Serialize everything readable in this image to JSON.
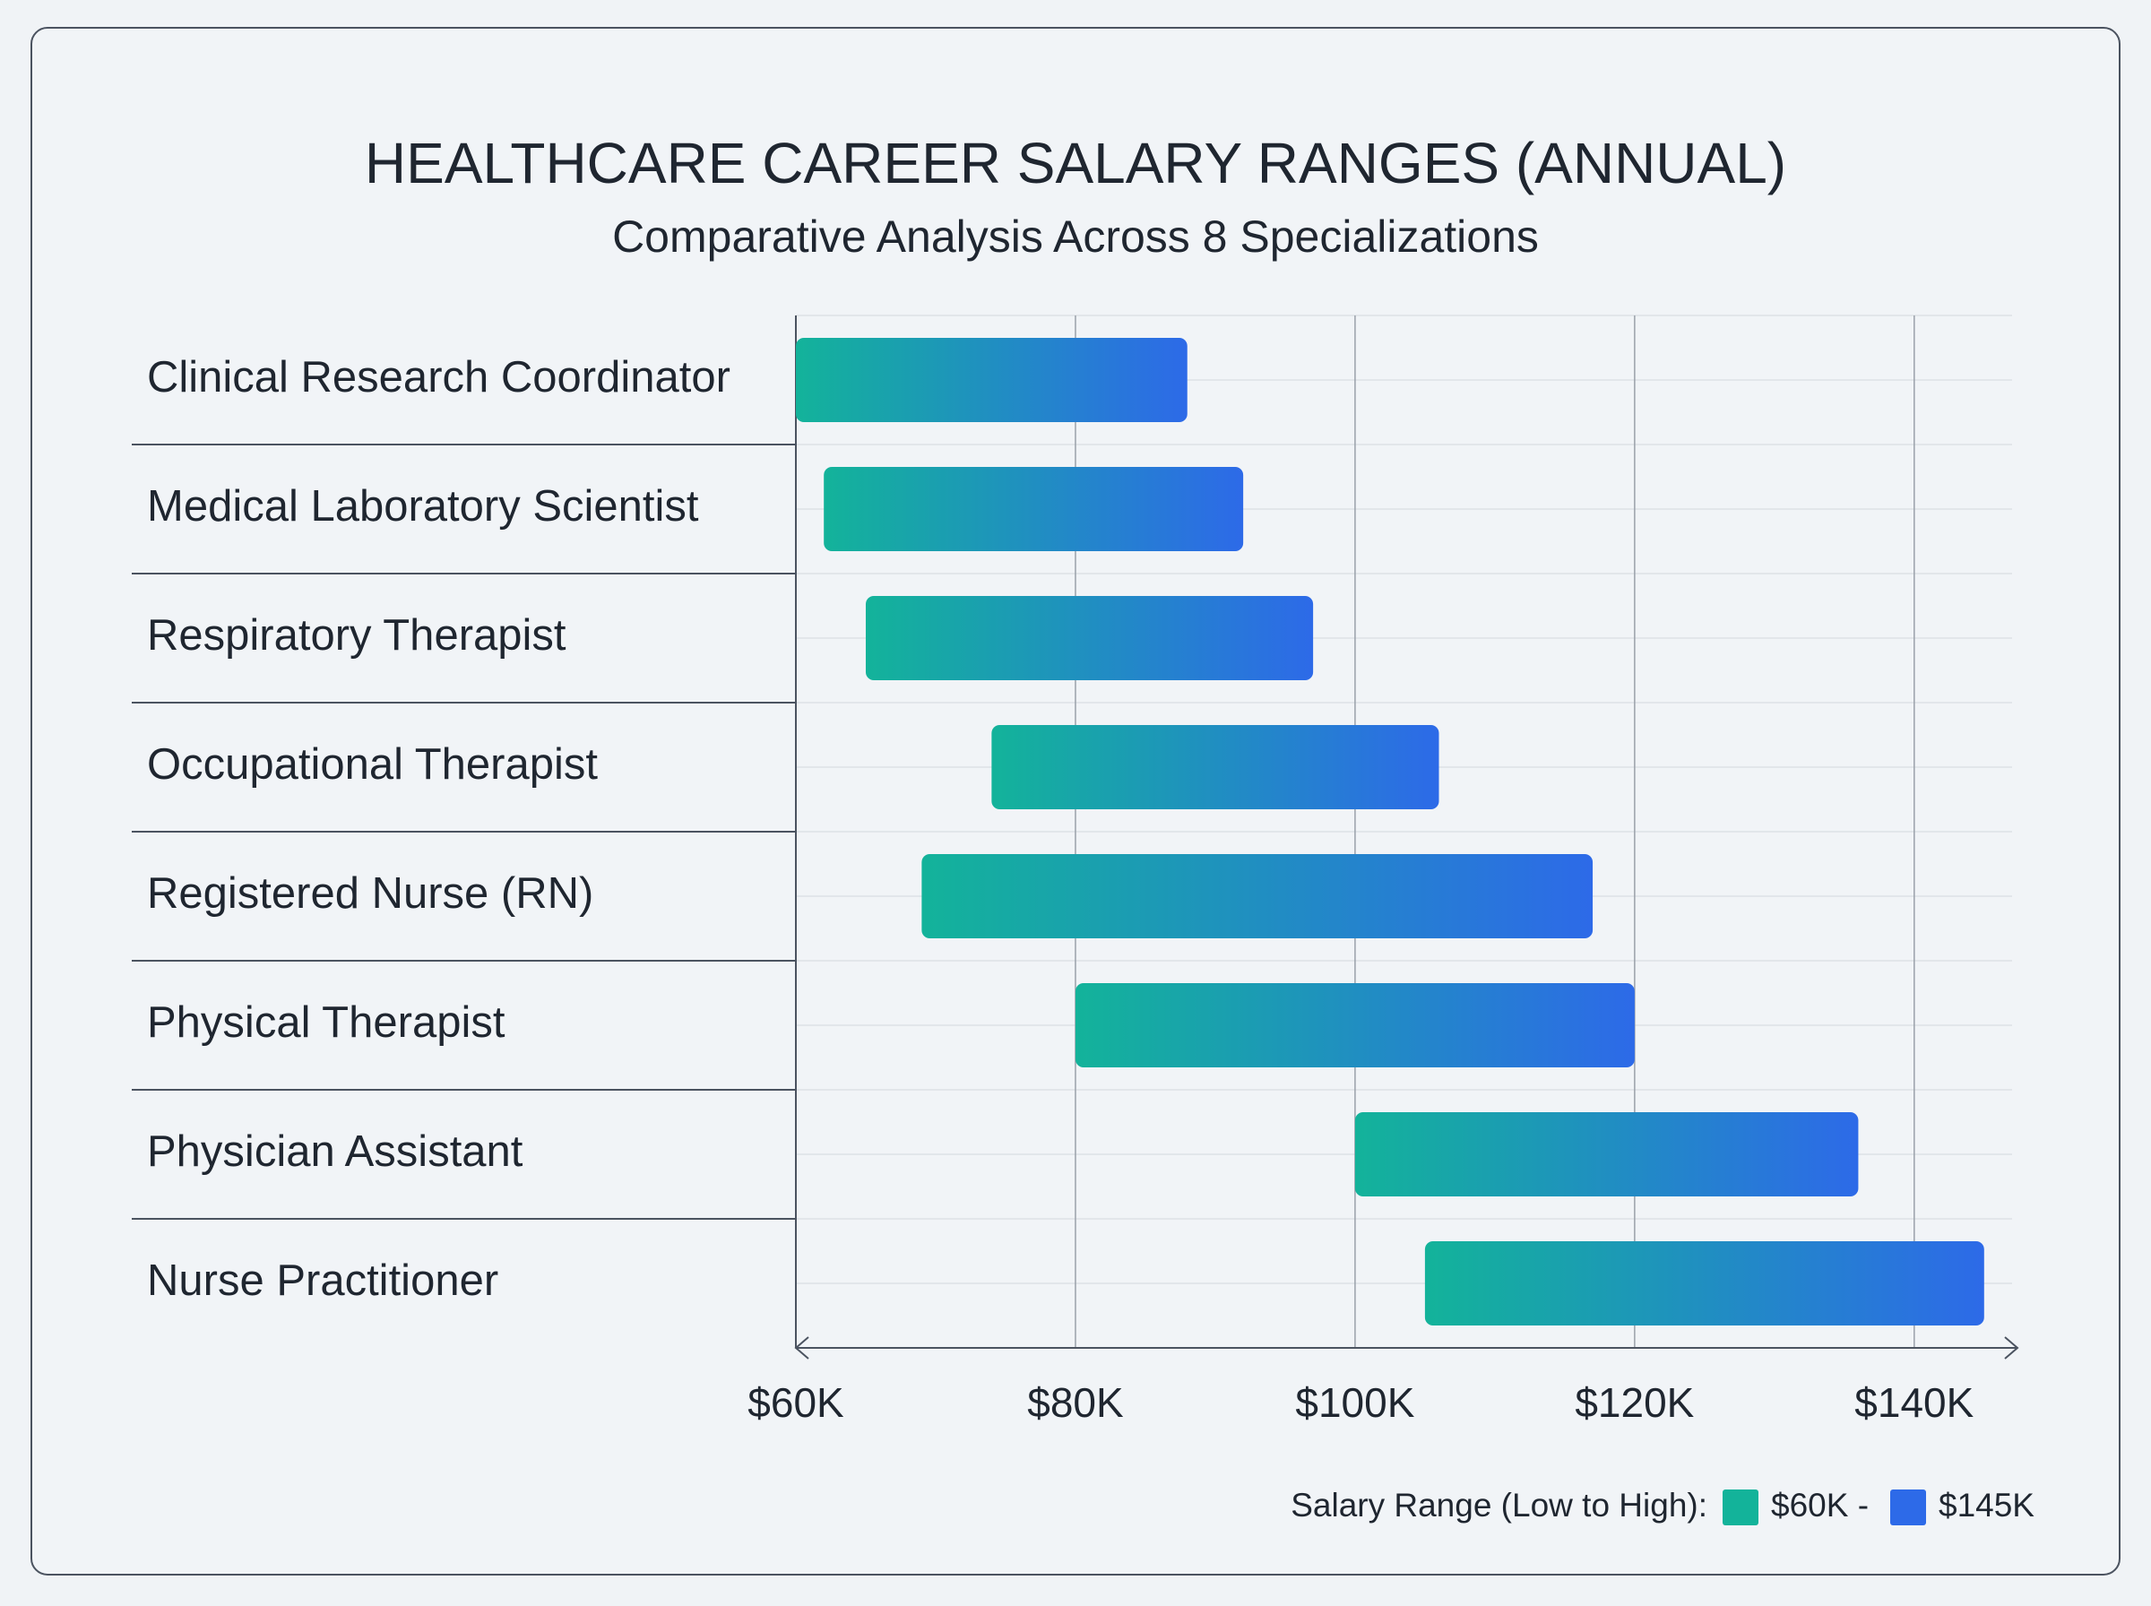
{
  "chart_data": {
    "type": "range_bar",
    "title": "HEALTHCARE CAREER SALARY RANGES (ANNUAL)",
    "subtitle": "Comparative Analysis Across 8 Specializations",
    "categories": [
      "Clinical Research Coordinator",
      "Medical Laboratory Scientist",
      "Respiratory Therapist",
      "Occupational Therapist",
      "Registered Nurse (RN)",
      "Physical Therapist",
      "Physician Assistant",
      "Nurse Practitioner"
    ],
    "low": [
      60,
      62,
      65,
      74,
      69,
      80,
      100,
      105
    ],
    "high": [
      88,
      92,
      97,
      106,
      117,
      120,
      136,
      145
    ],
    "colors": [
      "#13b39a",
      "#2d6ae8"
    ],
    "xlim": [
      60,
      147
    ],
    "xticks": [
      {
        "value": 60,
        "label": "$60K"
      },
      {
        "value": 80,
        "label": "$80K"
      },
      {
        "value": 100,
        "label": "$100K"
      },
      {
        "value": 120,
        "label": "$120K"
      },
      {
        "value": 140,
        "label": "$140K"
      }
    ],
    "grid": true,
    "legend": {
      "title": "Salary Range (Low to High):",
      "low_label": "$60K -",
      "high_label": "$145K"
    }
  }
}
